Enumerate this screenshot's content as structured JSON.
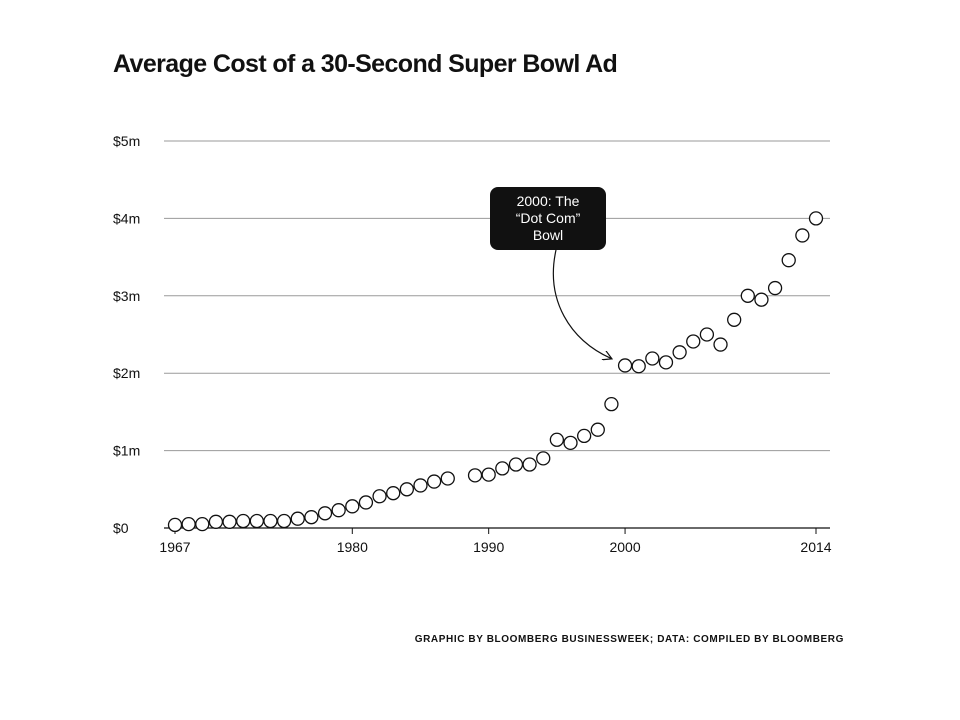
{
  "title": "Average Cost of a 30-Second Super Bowl Ad",
  "credit": "GRAPHIC BY BLOOMBERG BUSINESSWEEK; DATA: COMPILED BY BLOOMBERG",
  "annotation": {
    "lines": [
      "2000: The",
      "“Dot Com”",
      "Bowl"
    ],
    "target_year": 2000
  },
  "colors": {
    "grid": "#9a9a9a",
    "marker_stroke": "#111111",
    "marker_fill": "#ffffff",
    "annotation_bg": "#111111",
    "annotation_text": "#ffffff"
  },
  "chart_data": {
    "type": "scatter",
    "title": "Average Cost of a 30-Second Super Bowl Ad",
    "xlabel": "",
    "ylabel": "",
    "xlim": [
      1967,
      2014
    ],
    "ylim": [
      0,
      5
    ],
    "x_ticks": [
      1967,
      1980,
      1990,
      2000,
      2014
    ],
    "y_ticks": [
      0,
      1,
      2,
      3,
      4,
      5
    ],
    "y_tick_labels": [
      "$0",
      "$1m",
      "$2m",
      "$3m",
      "$4m",
      "$5m"
    ],
    "grid": "horizontal",
    "legend": "none",
    "x": [
      1967,
      1968,
      1969,
      1970,
      1971,
      1972,
      1973,
      1974,
      1975,
      1976,
      1977,
      1978,
      1979,
      1980,
      1981,
      1982,
      1983,
      1984,
      1985,
      1986,
      1987,
      1989,
      1990,
      1991,
      1992,
      1993,
      1994,
      1995,
      1996,
      1997,
      1998,
      1999,
      2000,
      2001,
      2002,
      2003,
      2004,
      2005,
      2006,
      2007,
      2008,
      2009,
      2010,
      2011,
      2012,
      2013,
      2014
    ],
    "y": [
      0.04,
      0.05,
      0.05,
      0.08,
      0.08,
      0.09,
      0.09,
      0.09,
      0.09,
      0.12,
      0.14,
      0.19,
      0.23,
      0.28,
      0.33,
      0.41,
      0.45,
      0.5,
      0.55,
      0.6,
      0.64,
      0.68,
      0.69,
      0.77,
      0.82,
      0.82,
      0.9,
      1.14,
      1.1,
      1.19,
      1.27,
      1.6,
      2.1,
      2.09,
      2.19,
      2.14,
      2.27,
      2.41,
      2.5,
      2.37,
      2.69,
      3.0,
      2.95,
      3.1,
      3.46,
      3.78,
      4.0
    ]
  }
}
